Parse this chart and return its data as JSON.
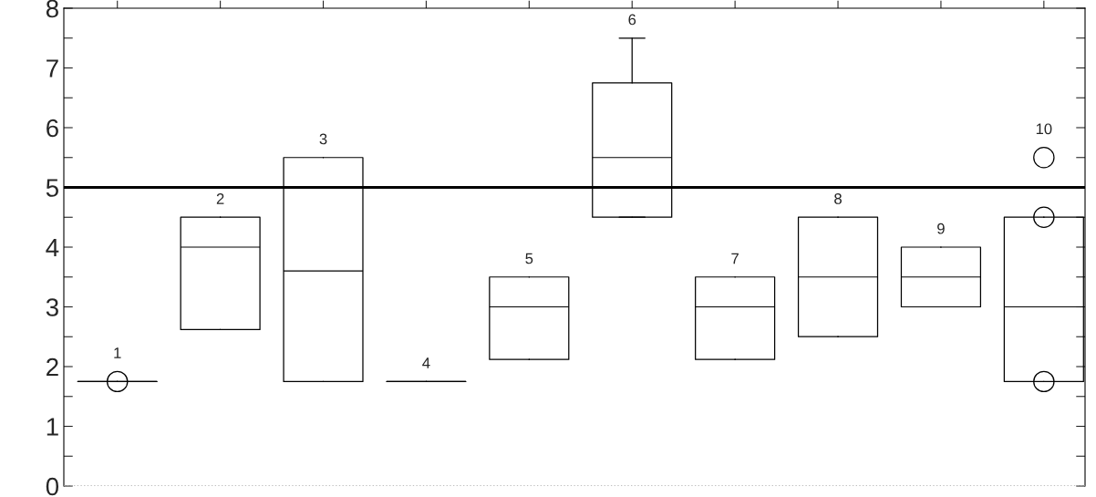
{
  "chart_data": {
    "type": "box",
    "categories": [
      "1",
      "2",
      "3",
      "4",
      "5",
      "6",
      "7",
      "8",
      "9",
      "10"
    ],
    "boxes": [
      {
        "low": 1.75,
        "q1": 1.75,
        "median": 1.75,
        "q3": 1.75,
        "high": 1.75,
        "outliers": [
          1.75
        ]
      },
      {
        "low": 2.62,
        "q1": 2.62,
        "median": 4,
        "q3": 4.5,
        "high": 4.5
      },
      {
        "low": 1.75,
        "q1": 1.75,
        "median": 3.6,
        "q3": 5.5,
        "high": 5.5
      },
      {
        "low": 1.75,
        "q1": 1.75,
        "median": 1.75,
        "q3": 1.75,
        "high": 1.75
      },
      {
        "low": 2.12,
        "q1": 2.12,
        "median": 3,
        "q3": 3.5,
        "high": 3.5
      },
      {
        "low": 4.5,
        "q1": 4.5,
        "median": 5.5,
        "q3": 6.75,
        "high": 7.5
      },
      {
        "low": 2.12,
        "q1": 2.12,
        "median": 3,
        "q3": 3.5,
        "high": 3.5
      },
      {
        "low": 2.5,
        "q1": 2.5,
        "median": 3.5,
        "q3": 4.5,
        "high": 4.5
      },
      {
        "low": 3,
        "q1": 3,
        "median": 3.5,
        "q3": 4,
        "high": 4
      },
      {
        "low": 1.75,
        "q1": 1.75,
        "median": 3,
        "q3": 4.5,
        "high": 4.5,
        "outliers": [
          1.75,
          4.5,
          5.5
        ]
      }
    ],
    "ylim": [
      0,
      8
    ],
    "yticks": [
      0,
      {
        "value": 0.5,
        "label": null
      },
      1,
      {
        "value": 1.5,
        "label": null
      },
      2,
      {
        "value": 2.5,
        "label": null
      },
      3,
      {
        "value": 3.5,
        "label": null
      },
      4,
      {
        "value": 4.5,
        "label": null
      },
      5,
      {
        "value": 5.5,
        "label": null
      },
      6,
      {
        "value": 6.5,
        "label": null
      },
      7,
      {
        "value": 7.5,
        "label": null
      },
      8
    ],
    "ref_lines": [
      {
        "axis": "y",
        "value": 5,
        "color": "#000000",
        "line_style": "solid"
      },
      {
        "axis": "y",
        "value": 0,
        "color": "#aaaaaa",
        "line_style": "dotted"
      }
    ],
    "grid": false,
    "legend": false
  }
}
